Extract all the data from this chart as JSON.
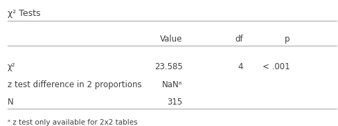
{
  "title": "χ² Tests",
  "col_headers": [
    "",
    "Value",
    "df",
    "p"
  ],
  "rows": [
    [
      "χ²",
      "23.585",
      "4",
      "< .001"
    ],
    [
      "z test difference in 2 proportions",
      "NaNᵃ",
      "",
      ""
    ],
    [
      "N",
      "315",
      "",
      ""
    ]
  ],
  "footnote": "ᵃ z test only available for 2x2 tables",
  "bg_color": "#ffffff",
  "text_color": "#404040",
  "line_color": "#aaaaaa",
  "title_fontsize": 9,
  "header_fontsize": 8.5,
  "body_fontsize": 8.5,
  "footnote_fontsize": 7.5
}
